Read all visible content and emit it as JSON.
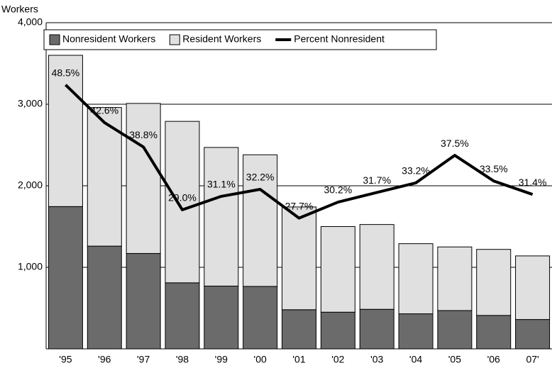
{
  "chart_data": {
    "type": "bar-line",
    "y_label": "Workers",
    "categories": [
      "'95",
      "'96",
      "'97",
      "'98",
      "'99",
      "'00",
      "'01",
      "'02",
      "'03",
      "'04",
      "'05",
      "'06",
      "07'"
    ],
    "series": [
      {
        "name": "Nonresident Workers",
        "color": "#6b6b6b",
        "stack": true,
        "values": [
          1745,
          1260,
          1170,
          810,
          770,
          766,
          480,
          450,
          485,
          430,
          470,
          410,
          360
        ]
      },
      {
        "name": "Resident Workers",
        "color": "#e0e0e0",
        "stack": true,
        "values": [
          1855,
          1700,
          1840,
          1980,
          1700,
          1614,
          1260,
          1050,
          1040,
          860,
          780,
          810,
          780
        ]
      },
      {
        "name": "Percent Nonresident",
        "color": "#000000",
        "axis": "y2",
        "values": [
          48.5,
          42.6,
          38.8,
          29.0,
          31.1,
          32.2,
          27.7,
          30.2,
          31.7,
          33.2,
          37.5,
          33.5,
          31.4
        ],
        "value_labels": [
          "48.5%",
          "42.6%",
          "38.8%",
          "29.0%",
          "31.1%",
          "32.2%",
          "27.7%",
          "30.2%",
          "31.7%",
          "33.2%",
          "37.5%",
          "33.5%",
          "31.4%"
        ]
      }
    ],
    "ylim": [
      0,
      4000
    ],
    "yticks": [
      {
        "value": 0,
        "label": ""
      },
      {
        "value": 1000,
        "label": "1,000"
      },
      {
        "value": 2000,
        "label": "2,000"
      },
      {
        "value": 3000,
        "label": "3,000"
      },
      {
        "value": 4000,
        "label": "4,000"
      }
    ],
    "y2lim": [
      7.3,
      58.2
    ],
    "grid": true,
    "legend": "top-left"
  }
}
